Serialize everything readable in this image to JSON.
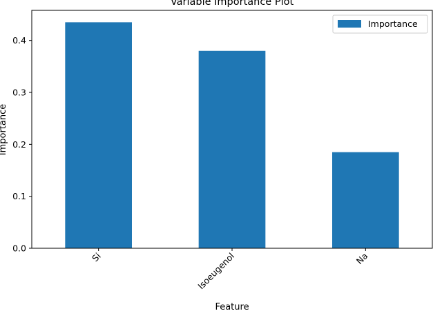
{
  "chart_data": {
    "type": "bar",
    "title": "Variable Importance Plot",
    "xlabel": "Feature",
    "ylabel": "Importance",
    "categories": [
      "Si",
      "Isoeugenol",
      "Na"
    ],
    "series": [
      {
        "name": "Importance",
        "values": [
          0.435,
          0.38,
          0.185
        ],
        "color": "#1f77b4"
      }
    ],
    "ylim": [
      0,
      0.458
    ],
    "yticks": [
      0.0,
      0.1,
      0.2,
      0.3,
      0.4
    ],
    "ytick_labels": [
      "0.0",
      "0.1",
      "0.2",
      "0.3",
      "0.4"
    ],
    "legend": {
      "position": "top-right",
      "entries": [
        "Importance"
      ]
    },
    "grid": false
  }
}
